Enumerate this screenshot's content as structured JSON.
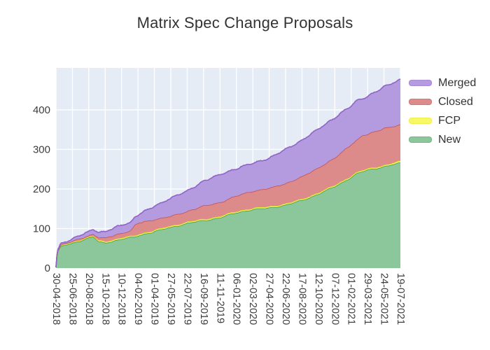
{
  "title": "Matrix Spec Change Proposals",
  "chart_data": {
    "type": "area",
    "stacked": true,
    "title": "Matrix Spec Change Proposals",
    "xlabel": "",
    "ylabel": "",
    "grid": true,
    "legend_position": "right-top",
    "ylim": [
      0,
      506
    ],
    "y_ticks": [
      "0",
      "100",
      "200",
      "300",
      "400"
    ],
    "x_ticklabels": [
      "30-04-2018",
      "25-06-2018",
      "20-08-2018",
      "15-10-2018",
      "10-12-2018",
      "04-02-2019",
      "01-04-2019",
      "27-05-2019",
      "22-07-2019",
      "16-09-2019",
      "11-11-2019",
      "06-01-2020",
      "02-03-2020",
      "27-04-2020",
      "22-06-2020",
      "17-08-2020",
      "12-10-2020",
      "07-12-2020",
      "01-02-2021",
      "29-03-2021",
      "24-05-2021",
      "19-07-2021"
    ],
    "colors": {
      "plot_bg": "#E5ECF6",
      "grid": "#FFFFFF"
    },
    "series": [
      {
        "name": "New",
        "line": "#3C9E57",
        "fill": "#8CC79B",
        "values": [
          2,
          63,
          77,
          64,
          74,
          82,
          93,
          103,
          114,
          120,
          128,
          140,
          149,
          152,
          160,
          171,
          188,
          206,
          230,
          248,
          257,
          266
        ]
      },
      {
        "name": "FCP",
        "line": "#E0E01C",
        "fill": "#F7F768",
        "values": [
          0,
          2,
          2,
          3,
          3,
          3,
          3,
          3,
          3,
          3,
          3,
          3,
          3,
          3,
          3,
          3,
          3,
          3,
          3,
          3,
          3,
          4
        ]
      },
      {
        "name": "Closed",
        "line": "#C94F4F",
        "fill": "#DD8A8A",
        "values": [
          0,
          3,
          4,
          9,
          12,
          29,
          27,
          25,
          27,
          34,
          35,
          40,
          43,
          47,
          51,
          57,
          63,
          69,
          80,
          87,
          94,
          92
        ]
      },
      {
        "name": "Merged",
        "line": "#8F63C7",
        "fill": "#B49BE0",
        "values": [
          0,
          6,
          10,
          16,
          20,
          21,
          33,
          46,
          51,
          63,
          70,
          69,
          70,
          76,
          86,
          92,
          98,
          102,
          97,
          96,
          104,
          115
        ]
      }
    ],
    "extra_samples": [
      {
        "x": 0.08,
        "values": [
          40,
          1,
          1,
          2
        ]
      },
      {
        "x": 0.3,
        "values": [
          55,
          2,
          2,
          3
        ]
      },
      {
        "x": 2.3,
        "values": [
          79,
          2,
          5,
          12
        ]
      },
      {
        "x": 2.6,
        "values": [
          66,
          3,
          8,
          14
        ]
      },
      {
        "x": 4.55,
        "values": [
          77,
          3,
          14,
          21
        ]
      },
      {
        "x": 4.8,
        "values": [
          79,
          3,
          26,
          21
        ]
      },
      {
        "x": 18.4,
        "values": [
          240,
          3,
          83,
          99
        ]
      },
      {
        "x": 18.7,
        "values": [
          244,
          3,
          89,
          93
        ]
      }
    ]
  }
}
